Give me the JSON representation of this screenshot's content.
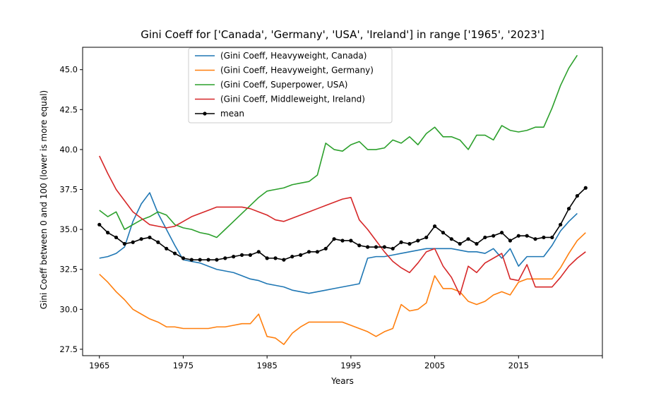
{
  "chart_data": {
    "type": "line",
    "title": "Gini Coeff for ['Canada', 'Germany', 'USA', 'Ireland'] in range ['1965', '2023']",
    "xlabel": "Years",
    "ylabel": "Gini Coeff between 0 and 100 (lower is more equal)",
    "xlim": [
      1963,
      2025
    ],
    "ylim": [
      27.1,
      46.4
    ],
    "xticks": [
      1965,
      1975,
      1985,
      1995,
      2005,
      2015,
      2025
    ],
    "xtick_labels": [
      "1965",
      "1975",
      "1985",
      "1995",
      "2005",
      "2015",
      ""
    ],
    "yticks": [
      27.5,
      30.0,
      32.5,
      35.0,
      37.5,
      40.0,
      42.5,
      45.0
    ],
    "ytick_labels": [
      "27.5",
      "30.0",
      "32.5",
      "35.0",
      "37.5",
      "40.0",
      "42.5",
      "45.0"
    ],
    "grid": false,
    "legend_position": "upper-left",
    "x": [
      1965,
      1966,
      1967,
      1968,
      1969,
      1970,
      1971,
      1972,
      1973,
      1974,
      1975,
      1976,
      1977,
      1978,
      1979,
      1980,
      1981,
      1982,
      1983,
      1984,
      1985,
      1986,
      1987,
      1988,
      1989,
      1990,
      1991,
      1992,
      1993,
      1994,
      1995,
      1996,
      1997,
      1998,
      1999,
      2000,
      2001,
      2002,
      2003,
      2004,
      2005,
      2006,
      2007,
      2008,
      2009,
      2010,
      2011,
      2012,
      2013,
      2014,
      2015,
      2016,
      2017,
      2018,
      2019,
      2020,
      2021,
      2022,
      2023
    ],
    "series": [
      {
        "name": "(Gini Coeff, Heavyweight, Canada)",
        "color": "#1f77b4",
        "marker": false,
        "values": [
          33.2,
          33.3,
          33.5,
          33.9,
          35.5,
          36.6,
          37.3,
          36.0,
          35.0,
          34.0,
          33.1,
          33.0,
          32.9,
          32.7,
          32.5,
          32.4,
          32.3,
          32.1,
          31.9,
          31.8,
          31.6,
          31.5,
          31.4,
          31.2,
          31.1,
          31.0,
          31.1,
          31.2,
          31.3,
          31.4,
          31.5,
          31.6,
          33.2,
          33.3,
          33.3,
          33.4,
          33.5,
          33.6,
          33.7,
          33.8,
          33.8,
          33.8,
          33.8,
          33.7,
          33.6,
          33.6,
          33.5,
          33.8,
          33.2,
          33.8,
          32.7,
          33.3,
          33.3,
          33.3,
          34.0,
          34.9,
          35.5,
          36.0,
          null
        ]
      },
      {
        "name": "(Gini Coeff, Heavyweight, Germany)",
        "color": "#ff7f0e",
        "marker": false,
        "values": [
          32.2,
          31.7,
          31.1,
          30.6,
          30.0,
          29.7,
          29.4,
          29.2,
          28.9,
          28.9,
          28.8,
          28.8,
          28.8,
          28.8,
          28.9,
          28.9,
          29.0,
          29.1,
          29.1,
          29.7,
          28.3,
          28.2,
          27.8,
          28.5,
          28.9,
          29.2,
          29.2,
          29.2,
          29.2,
          29.2,
          29.0,
          28.8,
          28.6,
          28.3,
          28.6,
          28.8,
          30.3,
          29.9,
          30.0,
          30.4,
          32.1,
          31.3,
          31.3,
          31.1,
          30.5,
          30.3,
          30.5,
          30.9,
          31.1,
          30.9,
          31.7,
          31.9,
          31.9,
          31.9,
          31.9,
          32.6,
          33.5,
          34.3,
          34.8
        ]
      },
      {
        "name": "(Gini Coeff, Superpower, USA)",
        "color": "#2ca02c",
        "marker": false,
        "values": [
          36.2,
          35.8,
          36.1,
          35.0,
          35.3,
          35.6,
          35.8,
          36.1,
          35.9,
          35.3,
          35.1,
          35.0,
          34.8,
          34.7,
          34.5,
          35.0,
          35.5,
          36.0,
          36.5,
          37.0,
          37.4,
          37.5,
          37.6,
          37.8,
          37.9,
          38.0,
          38.4,
          40.4,
          40.0,
          39.9,
          40.3,
          40.5,
          40.0,
          40.0,
          40.1,
          40.6,
          40.4,
          40.8,
          40.3,
          41.0,
          41.4,
          40.8,
          40.8,
          40.6,
          40.0,
          40.9,
          40.9,
          40.6,
          41.5,
          41.2,
          41.1,
          41.2,
          41.4,
          41.4,
          42.6,
          44.0,
          45.1,
          45.9,
          null
        ]
      },
      {
        "name": "(Gini Coeff, Middleweight, Ireland)",
        "color": "#d62728",
        "marker": false,
        "values": [
          39.6,
          38.5,
          37.5,
          36.8,
          36.1,
          35.7,
          35.3,
          35.2,
          35.1,
          35.2,
          35.5,
          35.8,
          36.0,
          36.2,
          36.4,
          36.4,
          36.4,
          36.4,
          36.3,
          36.1,
          35.9,
          35.6,
          35.5,
          35.7,
          35.9,
          36.1,
          36.3,
          36.5,
          36.7,
          36.9,
          37.0,
          35.6,
          35.0,
          34.3,
          33.6,
          33.0,
          32.6,
          32.3,
          32.9,
          33.6,
          33.8,
          32.7,
          32.0,
          30.9,
          32.7,
          32.3,
          32.9,
          33.2,
          33.5,
          31.9,
          31.8,
          32.8,
          31.4,
          31.4,
          31.4,
          32.0,
          32.7,
          33.2,
          33.6
        ]
      },
      {
        "name": "mean",
        "color": "#000000",
        "marker": true,
        "values": [
          35.3,
          34.8,
          34.5,
          34.1,
          34.2,
          34.4,
          34.5,
          34.2,
          33.8,
          33.5,
          33.2,
          33.1,
          33.1,
          33.1,
          33.1,
          33.2,
          33.3,
          33.4,
          33.4,
          33.6,
          33.2,
          33.2,
          33.1,
          33.3,
          33.4,
          33.6,
          33.6,
          33.8,
          34.4,
          34.3,
          34.3,
          34.0,
          33.9,
          33.9,
          33.9,
          33.8,
          34.2,
          34.1,
          34.3,
          34.5,
          35.2,
          34.8,
          34.4,
          34.1,
          34.4,
          34.1,
          34.5,
          34.6,
          34.8,
          34.3,
          34.6,
          34.6,
          34.4,
          34.5,
          34.5,
          35.3,
          36.3,
          37.1,
          37.6
        ]
      }
    ]
  }
}
